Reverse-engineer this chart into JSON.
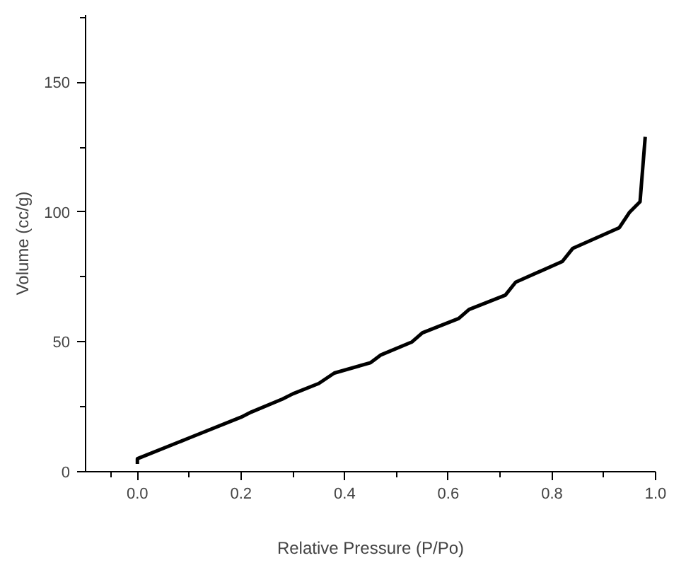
{
  "chart_data": {
    "type": "line",
    "xlabel": "Relative Pressure (P/Po)",
    "ylabel": "Volume (cc/g)",
    "xlim": [
      -0.1,
      1.0
    ],
    "ylim": [
      0,
      176
    ],
    "xticks": [
      {
        "value": 0,
        "label": "0.0"
      },
      0.2,
      0.4,
      0.6,
      0.8,
      {
        "value": 1,
        "label": "1.0"
      }
    ],
    "yticks": [
      0,
      50,
      100,
      150
    ],
    "grid": false,
    "marker": "none",
    "line_style": "solid",
    "series": [
      {
        "color": "#000000",
        "x": [
          0.0,
          0.0,
          0.1,
          0.2,
          0.22,
          0.28,
          0.3,
          0.35,
          0.38,
          0.45,
          0.47,
          0.53,
          0.55,
          0.62,
          0.64,
          0.71,
          0.73,
          0.82,
          0.84,
          0.93,
          0.95,
          0.97,
          0.98
        ],
        "values": [
          3,
          5,
          13,
          21,
          23,
          28,
          30,
          34,
          38,
          42,
          45,
          50,
          53.5,
          59,
          62.5,
          68,
          73,
          81,
          86,
          94,
          100,
          104,
          129
        ]
      }
    ]
  }
}
